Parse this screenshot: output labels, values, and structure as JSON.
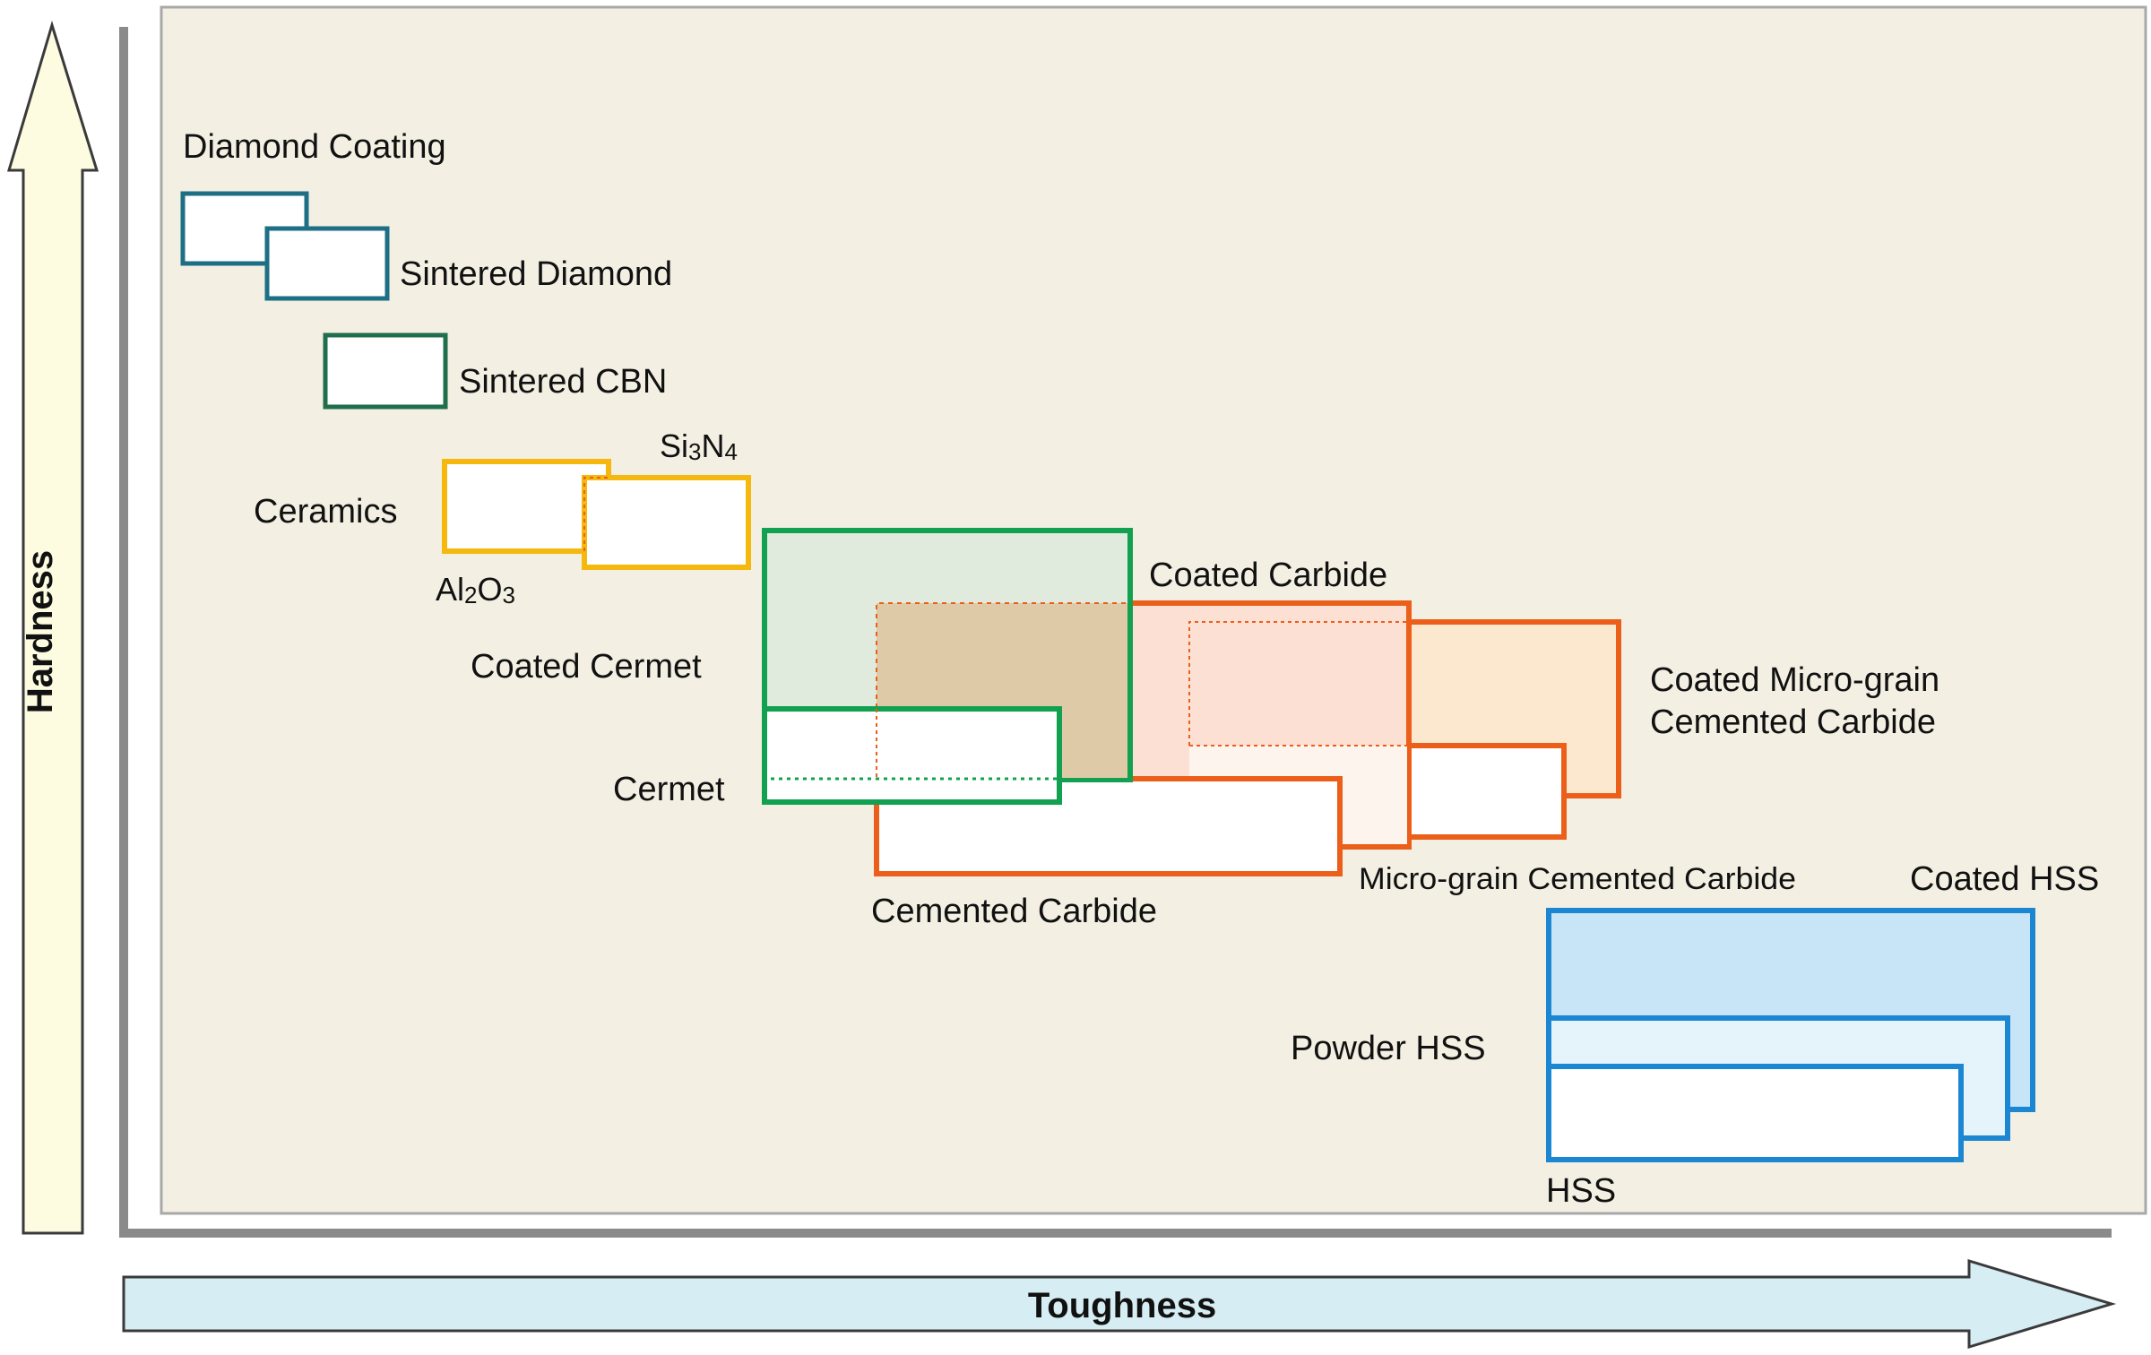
{
  "axes": {
    "hardness": "Hardness",
    "toughness": "Toughness"
  },
  "labels": {
    "diamond_coating": "Diamond Coating",
    "sintered_diamond": "Sintered Diamond",
    "sintered_cbn": "Sintered CBN",
    "si3n4_main": "Si",
    "si3n4_sub1": "3",
    "si3n4_mid": "N",
    "si3n4_sub2": "4",
    "ceramics": "Ceramics",
    "al2o3_main": "Al",
    "al2o3_sub1": "2",
    "al2o3_mid": "O",
    "al2o3_sub2": "3",
    "coated_cermet": "Coated Cermet",
    "cermet": "Cermet",
    "coated_carbide": "Coated Carbide",
    "coated_micro_grain_line1": "Coated Micro-grain",
    "coated_micro_grain_line2": "Cemented Carbide",
    "micro_grain_cemented_carbide": "Micro-grain Cemented Carbide",
    "cemented_carbide": "Cemented Carbide",
    "coated_hss": "Coated HSS",
    "powder_hss": "Powder HSS",
    "hss": "HSS"
  },
  "colors": {
    "panel_bg": "#f3efe3",
    "panel_border": "#a8a8a8",
    "axis_frame": "#8a8a8a",
    "hardness_arrow": "#fdfbe0",
    "toughness_arrow": "#d6edf3",
    "diamond": "#1e6f86",
    "cbn": "#1f6e4c",
    "ceramics": "#f5b80e",
    "cermet": "#12a150",
    "carbide": "#ec5f1a",
    "hss": "#1b86d1"
  }
}
